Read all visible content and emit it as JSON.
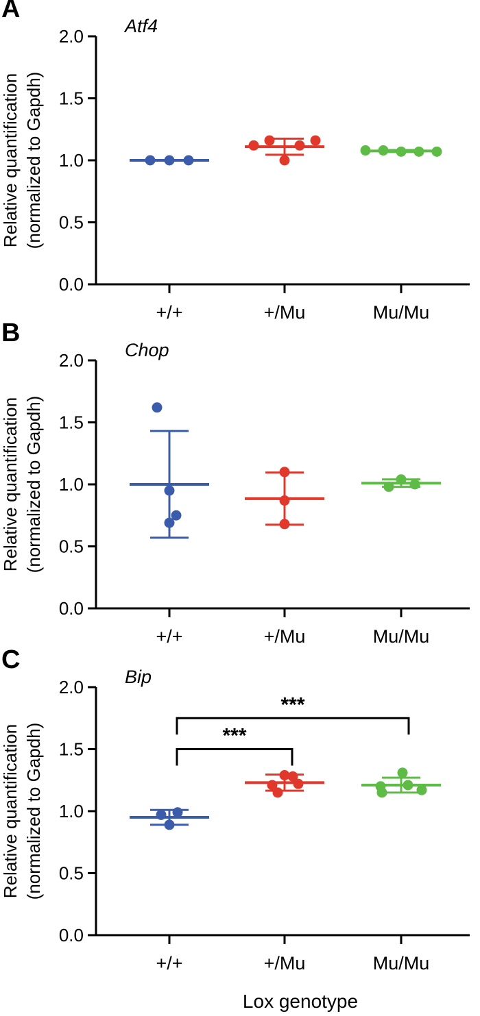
{
  "chart_data": [
    {
      "type": "scatter",
      "panel": "A",
      "title": "Atf4",
      "ylabel_line1": "Relative quantification",
      "ylabel_line2": "(normalized to Gapdh)",
      "ylim": [
        0,
        2
      ],
      "yticks": [
        "0.0",
        "0.5",
        "1.0",
        "1.5",
        "2.0"
      ],
      "categories": [
        "+/+",
        "+/Mu",
        "Mu/Mu"
      ],
      "colors": [
        "#3b5bab",
        "#e0392b",
        "#5dbb46"
      ],
      "series": [
        {
          "name": "+/+",
          "points": [
            1.0,
            1.0,
            1.0
          ],
          "mean": 1.0,
          "sd": 0.0
        },
        {
          "name": "+/Mu",
          "points": [
            1.12,
            1.16,
            1.0,
            1.12,
            1.16
          ],
          "mean": 1.11,
          "sd": 0.065
        },
        {
          "name": "Mu/Mu",
          "points": [
            1.08,
            1.08,
            1.07,
            1.07,
            1.07
          ],
          "mean": 1.075,
          "sd": 0.008
        }
      ],
      "significance": []
    },
    {
      "type": "scatter",
      "panel": "B",
      "title": "Chop",
      "ylabel_line1": "Relative quantification",
      "ylabel_line2": "(normalized to Gapdh)",
      "ylim": [
        0,
        2
      ],
      "yticks": [
        "0.0",
        "0.5",
        "1.0",
        "1.5",
        "2.0"
      ],
      "categories": [
        "+/+",
        "+/Mu",
        "Mu/Mu"
      ],
      "colors": [
        "#3b5bab",
        "#e0392b",
        "#5dbb46"
      ],
      "series": [
        {
          "name": "+/+",
          "points": [
            0.69,
            0.95,
            0.75,
            1.62
          ],
          "mean": 1.0,
          "sd": 0.43
        },
        {
          "name": "+/Mu",
          "points": [
            1.1,
            0.87,
            0.68
          ],
          "mean": 0.885,
          "sd": 0.21
        },
        {
          "name": "Mu/Mu",
          "points": [
            0.98,
            1.04,
            1.0
          ],
          "mean": 1.01,
          "sd": 0.03
        }
      ],
      "significance": []
    },
    {
      "type": "scatter",
      "panel": "C",
      "title": "Bip",
      "ylabel_line1": "Relative quantification",
      "ylabel_line2": "(normalized to Gapdh)",
      "ylim": [
        0,
        2
      ],
      "yticks": [
        "0.0",
        "0.5",
        "1.0",
        "1.5",
        "2.0"
      ],
      "categories": [
        "+/+",
        "+/Mu",
        "Mu/Mu"
      ],
      "colors": [
        "#3b5bab",
        "#e0392b",
        "#5dbb46"
      ],
      "series": [
        {
          "name": "+/+",
          "points": [
            0.97,
            0.89,
            0.99
          ],
          "mean": 0.95,
          "sd": 0.06
        },
        {
          "name": "+/Mu",
          "points": [
            1.21,
            1.28,
            1.15,
            1.29,
            1.22
          ],
          "mean": 1.23,
          "sd": 0.065
        },
        {
          "name": "Mu/Mu",
          "points": [
            1.2,
            1.31,
            1.15,
            1.21,
            1.17
          ],
          "mean": 1.21,
          "sd": 0.06
        }
      ],
      "significance": [
        {
          "from": "+/+",
          "to": "+/Mu",
          "label": "***",
          "level": 1.5
        },
        {
          "from": "+/+",
          "to": "Mu/Mu",
          "label": "***",
          "level": 1.75
        }
      ]
    }
  ],
  "xlabel": "Lox genotype"
}
